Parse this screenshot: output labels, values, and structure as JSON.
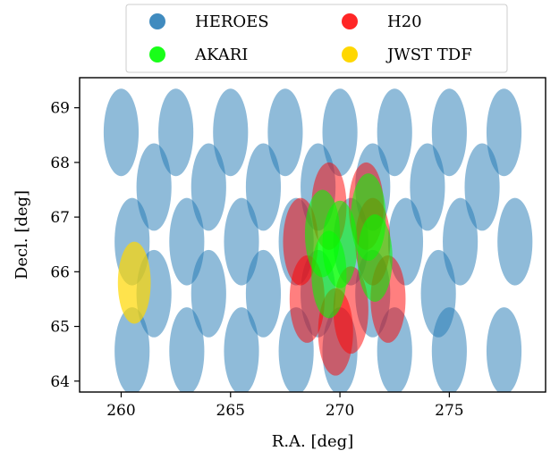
{
  "chart_data": {
    "type": "scatter",
    "title": "",
    "xlabel": "R.A. [deg]",
    "ylabel": "Decl. [deg]",
    "xlim": [
      258.1,
      279.4
    ],
    "ylim": [
      63.8,
      69.55
    ],
    "xticks": [
      260,
      265,
      270,
      275
    ],
    "yticks": [
      64,
      65,
      66,
      67,
      68,
      69
    ],
    "grid": false,
    "legend": {
      "placement": "top",
      "columns": 2
    },
    "series": [
      {
        "name": "HEROES",
        "color": "#1f77b4",
        "alpha": 0.5,
        "radius_deg": 0.8,
        "points": [
          [
            260.5,
            64.55
          ],
          [
            263.0,
            64.55
          ],
          [
            265.5,
            64.55
          ],
          [
            268.0,
            64.55
          ],
          [
            270.0,
            64.55
          ],
          [
            272.5,
            64.55
          ],
          [
            275.0,
            64.55
          ],
          [
            277.5,
            64.55
          ],
          [
            261.5,
            65.6
          ],
          [
            264.0,
            65.6
          ],
          [
            266.5,
            65.6
          ],
          [
            269.0,
            65.6
          ],
          [
            271.5,
            65.6
          ],
          [
            274.5,
            65.6
          ],
          [
            260.5,
            66.55
          ],
          [
            263.0,
            66.55
          ],
          [
            265.5,
            66.55
          ],
          [
            268.0,
            66.55
          ],
          [
            270.5,
            66.55
          ],
          [
            273.0,
            66.55
          ],
          [
            275.5,
            66.55
          ],
          [
            278.0,
            66.55
          ],
          [
            261.5,
            67.55
          ],
          [
            264.0,
            67.55
          ],
          [
            266.5,
            67.55
          ],
          [
            269.0,
            67.55
          ],
          [
            271.5,
            67.55
          ],
          [
            274.0,
            67.55
          ],
          [
            276.5,
            67.55
          ],
          [
            260.0,
            68.55
          ],
          [
            262.5,
            68.55
          ],
          [
            265.0,
            68.55
          ],
          [
            267.5,
            68.55
          ],
          [
            270.0,
            68.55
          ],
          [
            272.5,
            68.55
          ],
          [
            275.0,
            68.55
          ],
          [
            277.5,
            68.55
          ]
        ]
      },
      {
        "name": "H20",
        "color": "#ff0000",
        "alpha": 0.5,
        "radius_deg": 0.8,
        "points": [
          [
            268.5,
            65.5
          ],
          [
            270.5,
            65.3
          ],
          [
            272.2,
            65.5
          ],
          [
            268.2,
            66.55
          ],
          [
            271.5,
            66.55
          ],
          [
            269.5,
            67.2
          ],
          [
            271.2,
            67.2
          ],
          [
            269.8,
            64.9
          ]
        ]
      },
      {
        "name": "AKARI",
        "color": "#00ff00",
        "alpha": 0.55,
        "radius_deg": 0.8,
        "points": [
          [
            269.2,
            66.7
          ],
          [
            271.3,
            67.0
          ],
          [
            271.6,
            66.25
          ],
          [
            269.5,
            65.95
          ],
          [
            270.0,
            66.5
          ]
        ]
      },
      {
        "name": "JWST TDF",
        "color": "#ffd700",
        "alpha": 0.7,
        "radius_deg": 0.75,
        "points": [
          [
            260.6,
            65.8
          ]
        ]
      }
    ]
  }
}
